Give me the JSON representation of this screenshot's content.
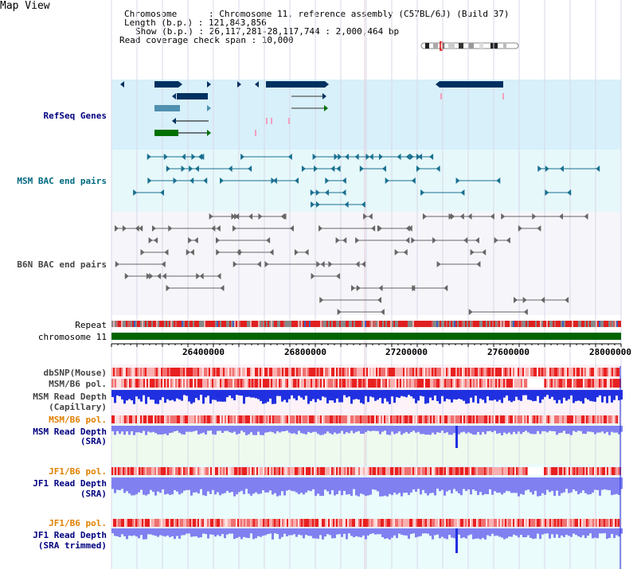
{
  "title": "Map View",
  "info": {
    "chromosome": "Chromosome      : Chromosome 11, reference assembly (C57BL/6J) (Build 37)",
    "length": "Length (b.p.) : 121,843,856",
    "show": "Show (b.p.) : 26,117,281-28,117,744 : 2,000,464 bp",
    "span": "Read coverage check span : 10,000"
  },
  "tracks": {
    "refseq": "RefSeq Genes",
    "msm_bac": "MSM BAC end pairs",
    "b6n_bac": "B6N BAC end pairs",
    "repeat": "Repeat",
    "chromosome": "chromosome 11",
    "dbsnp": "dbSNP(Mouse)",
    "msm_b6_pol_1": "MSM/B6 pol.",
    "msm_depth_cap_1": "MSM Read Depth",
    "msm_depth_cap_2": "(Capillary)",
    "msm_b6_pol_2": "MSM/B6 pol.",
    "msm_depth_sra_1": "MSM Read Depth",
    "msm_depth_sra_2": "(SRA)",
    "jf1_b6_pol_1": "JF1/B6 pol.",
    "jf1_depth_sra_1": "JF1 Read Depth",
    "jf1_depth_sra_2": "(SRA)",
    "jf1_b6_pol_2": "JF1/B6 pol.",
    "jf1_depth_trim_1": "JF1 Read Depth",
    "jf1_depth_trim_2": "(SRA trimmed)"
  },
  "axis": {
    "ticks": [
      "26400000",
      "26800000",
      "27200000",
      "27600000",
      "28000000"
    ]
  },
  "colors": {
    "refseq_bg": "#d8f0fa",
    "msm_bg": "#e6f8fa",
    "b6n_bg": "#f6f6fa",
    "chromosome_bar": "#006400",
    "gene_navy": "#003060",
    "gene_steel": "#5090b0",
    "gene_green": "#007000",
    "bac_teal": "#1a7090",
    "bac_gray": "#666666",
    "depth_blue": "#2030e0",
    "depth_periwinkle": "#8080f0",
    "snp_red": "#e03030"
  }
}
